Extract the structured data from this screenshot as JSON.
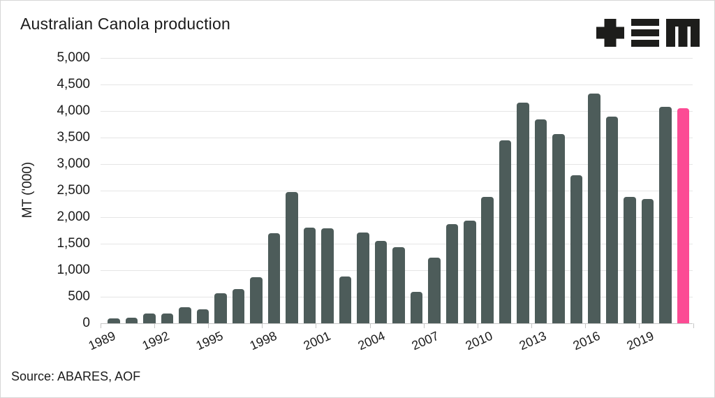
{
  "header": {
    "title": "Australian Canola production",
    "logo": {
      "color": "#1d1d1b",
      "glyphs": [
        "plus-icon",
        "triple-bar-icon",
        "m-glyph-icon"
      ]
    }
  },
  "chart_data": {
    "type": "bar",
    "title": "Australian Canola production",
    "xlabel": "",
    "ylabel": "MT ('000)",
    "ylim": [
      0,
      5000
    ],
    "grid": true,
    "legend": "none",
    "y_tick_values": [
      0,
      500,
      1000,
      1500,
      2000,
      2500,
      3000,
      3500,
      4000,
      4500,
      5000
    ],
    "y_tick_labels": [
      "0",
      "500",
      "1,000",
      "1,500",
      "2,000",
      "2,500",
      "3,000",
      "3,500",
      "4,000",
      "4,500",
      "5,000"
    ],
    "x_tick_labels": [
      "1989",
      "1992",
      "1995",
      "1998",
      "2001",
      "2004",
      "2007",
      "2010",
      "2013",
      "2016",
      "2019"
    ],
    "categories": [
      "1989",
      "1990",
      "1991",
      "1992",
      "1993",
      "1994",
      "1995",
      "1996",
      "1997",
      "1998",
      "1999",
      "2000",
      "2001",
      "2002",
      "2003",
      "2004",
      "2005",
      "2006",
      "2007",
      "2008",
      "2009",
      "2010",
      "2011",
      "2012",
      "2013",
      "2014",
      "2015",
      "2016",
      "2017",
      "2018",
      "2019",
      "2020",
      "2021"
    ],
    "values": [
      100,
      115,
      185,
      185,
      305,
      272,
      575,
      650,
      865,
      1700,
      2470,
      1800,
      1785,
      890,
      1715,
      1555,
      1430,
      595,
      1235,
      1870,
      1930,
      2380,
      3445,
      4160,
      3835,
      3560,
      2790,
      4320,
      3890,
      2380,
      2340,
      4070,
      4050
    ],
    "highlight_index": 32,
    "highlight_category": "2021",
    "bar_color": "#4d5c5a",
    "highlight_color": "#fc4b94",
    "grid_color": "#e5e5e5",
    "axis_color": "#c6c6c6",
    "text_color": "#1b1b1b"
  },
  "footer": {
    "source": "Source: ABARES, AOF"
  }
}
